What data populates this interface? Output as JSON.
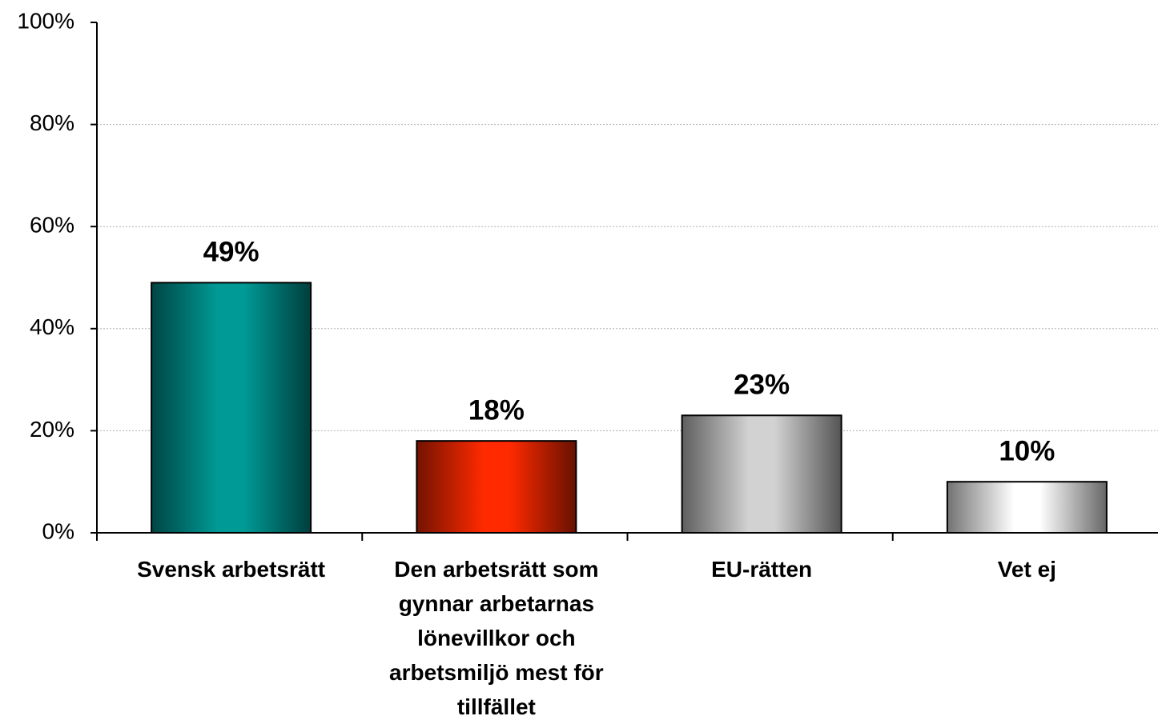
{
  "chart_data": {
    "type": "bar",
    "categories": [
      "Svensk arbetsrätt",
      "Den arbetsrätt som gynnar arbetarnas lönevillkor och arbetsmiljö mest för tillfället",
      "EU-rätten",
      "Vet ej"
    ],
    "values": [
      49,
      18,
      23,
      10
    ],
    "value_labels": [
      "49%",
      "18%",
      "23%",
      "10%"
    ],
    "colors": [
      "#009a96",
      "#ff2a00",
      "#d2d2d2",
      "#ffffff"
    ],
    "ylim": [
      0,
      100
    ],
    "yticks": [
      {
        "value": 0,
        "label": "0%"
      },
      {
        "value": 20,
        "label": "20%"
      },
      {
        "value": 40,
        "label": "40%"
      },
      {
        "value": 60,
        "label": "60%"
      },
      {
        "value": 80,
        "label": "80%"
      },
      {
        "value": 100,
        "label": "100%"
      }
    ],
    "grid": true
  }
}
